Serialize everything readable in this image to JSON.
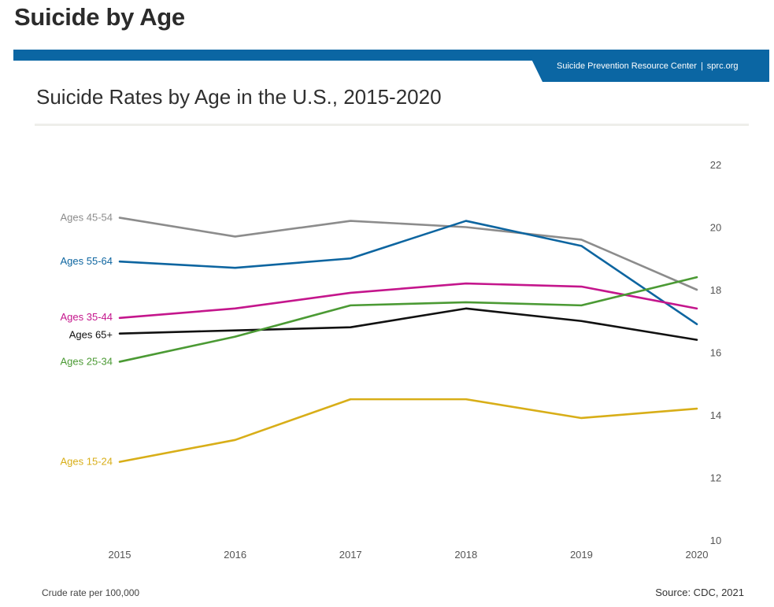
{
  "page": {
    "heading": "Suicide by Age"
  },
  "banner": {
    "org": "Suicide Prevention Resource Center",
    "separator": "|",
    "site": "sprc.org",
    "color": "#0b66a3"
  },
  "footer": {
    "note": "Crude rate per 100,000",
    "source": "Source: CDC, 2021"
  },
  "chart_data": {
    "type": "line",
    "title": "Suicide Rates by Age in the U.S., 2015-2020",
    "xlabel": "",
    "ylabel": "",
    "x": [
      2015,
      2016,
      2017,
      2018,
      2019,
      2020
    ],
    "ylim": [
      10,
      22
    ],
    "yticks": [
      10,
      12,
      14,
      16,
      18,
      20,
      22
    ],
    "y_axis_side": "right",
    "grid": false,
    "legend": "inline-left",
    "series": [
      {
        "name": "Ages 45-54",
        "color": "#8c8c8c",
        "values": [
          20.3,
          19.7,
          20.2,
          20.0,
          19.6,
          18.0
        ]
      },
      {
        "name": "Ages 55-64",
        "color": "#0d65a0",
        "values": [
          18.9,
          18.7,
          19.0,
          20.2,
          19.4,
          16.9
        ]
      },
      {
        "name": "Ages 35-44",
        "color": "#c4168c",
        "values": [
          17.1,
          17.4,
          17.9,
          18.2,
          18.1,
          17.4
        ]
      },
      {
        "name": "Ages 65+",
        "color": "#111111",
        "values": [
          16.6,
          16.7,
          16.8,
          17.4,
          17.0,
          16.4
        ]
      },
      {
        "name": "Ages 25-34",
        "color": "#4b9a34",
        "values": [
          15.7,
          16.5,
          17.5,
          17.6,
          17.5,
          18.4
        ]
      },
      {
        "name": "Ages 15-24",
        "color": "#d8ae18",
        "values": [
          12.5,
          13.2,
          14.5,
          14.5,
          13.9,
          14.2
        ]
      }
    ]
  }
}
